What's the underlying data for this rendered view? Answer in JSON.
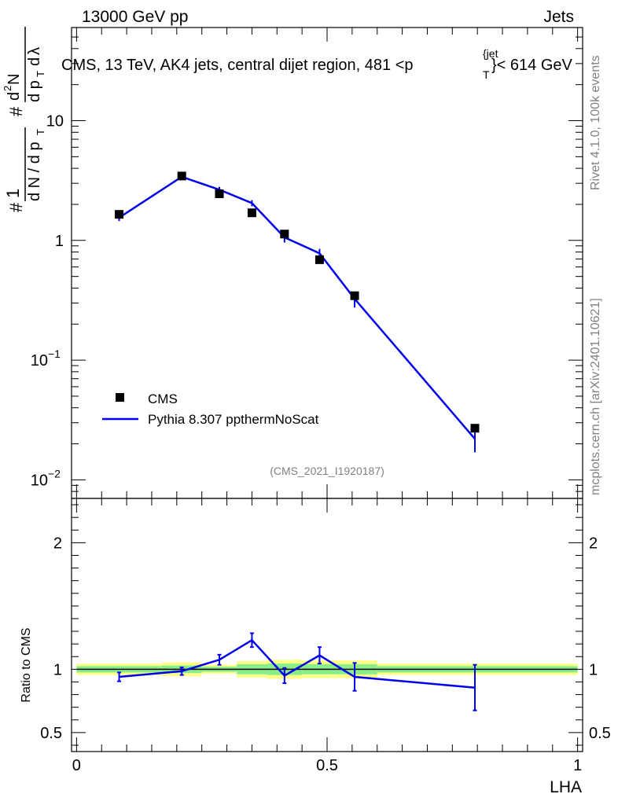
{
  "header": {
    "left": "13000 GeV pp",
    "right": "Jets"
  },
  "side_labels": {
    "rivet": "Rivet 4.1.0,  100k events",
    "mcplots": "mcplots.cern.ch [arXiv:2401.10621]"
  },
  "chart_data": [
    {
      "type": "line",
      "panel": "main",
      "title": "CMS, 13 TeV, AK4 jets, central dijet region, 481 <p_T^{jet}< 614 GeV",
      "title_text": "CMS, 13 TeV, AK4 jets, central dijet region, 481 <p",
      "title_sup": "{jet",
      "title_sub": "T",
      "title_end": "}< 614 GeV",
      "ylabel": "1/dN/dp_T  d2N/dp_T dλ",
      "yscale": "log",
      "ylim": [
        0.007,
        60
      ],
      "xlim": [
        -0.01,
        1.01
      ],
      "yticks": [
        {
          "v": 0.01,
          "base": "10",
          "exp": "−2"
        },
        {
          "v": 0.1,
          "base": "10",
          "exp": "−1"
        },
        {
          "v": 1,
          "label": "1"
        },
        {
          "v": 10,
          "label": "10"
        }
      ],
      "watermark": "(CMS_2021_I1920187)",
      "legend": [
        {
          "name": "CMS",
          "marker": "square"
        },
        {
          "name": "Pythia 8.307 ppthermNoScat",
          "marker": "line",
          "color": "#0000ee"
        }
      ],
      "series": [
        {
          "name": "CMS",
          "x": [
            0.085,
            0.21,
            0.285,
            0.35,
            0.415,
            0.485,
            0.555,
            0.795
          ],
          "y": [
            1.65,
            3.45,
            2.45,
            1.7,
            1.13,
            0.69,
            0.345,
            0.027
          ]
        },
        {
          "name": "Pythia 8.307 ppthermNoScat",
          "x": [
            0.085,
            0.21,
            0.285,
            0.35,
            0.415,
            0.485,
            0.555,
            0.795
          ],
          "y": [
            1.55,
            3.4,
            2.65,
            2.05,
            1.06,
            0.78,
            0.325,
            0.022
          ],
          "err": [
            0.1,
            0.15,
            0.15,
            0.12,
            0.1,
            0.07,
            0.05,
            0.005
          ]
        }
      ]
    },
    {
      "type": "line",
      "panel": "ratio",
      "ylabel": "Ratio to CMS",
      "xlabel": "LHA",
      "ylim": [
        0.35,
        2.35
      ],
      "xlim": [
        -0.01,
        1.01
      ],
      "yticks": [
        0.5,
        1,
        2
      ],
      "ytick_labels": [
        "0.5",
        "1",
        "2"
      ],
      "xticks": [
        0,
        0.5,
        1
      ],
      "xtick_labels": [
        "0",
        "0.5",
        "1"
      ],
      "reference": 1,
      "bands": [
        {
          "x0": 0.0,
          "x1": 0.17,
          "lo_out": 0.955,
          "hi_out": 1.045,
          "lo_in": 0.975,
          "hi_in": 1.025
        },
        {
          "x0": 0.17,
          "x1": 0.25,
          "lo_out": 0.945,
          "hi_out": 1.055,
          "lo_in": 0.97,
          "hi_in": 1.03
        },
        {
          "x0": 0.25,
          "x1": 0.32,
          "lo_out": 0.965,
          "hi_out": 1.035,
          "lo_in": 0.98,
          "hi_in": 1.02
        },
        {
          "x0": 0.32,
          "x1": 0.38,
          "lo_out": 0.935,
          "hi_out": 1.065,
          "lo_in": 0.96,
          "hi_in": 1.04
        },
        {
          "x0": 0.38,
          "x1": 0.45,
          "lo_out": 0.925,
          "hi_out": 1.075,
          "lo_in": 0.955,
          "hi_in": 1.045
        },
        {
          "x0": 0.45,
          "x1": 0.6,
          "lo_out": 0.93,
          "hi_out": 1.07,
          "lo_in": 0.96,
          "hi_in": 1.04
        },
        {
          "x0": 0.6,
          "x1": 1.0,
          "lo_out": 0.955,
          "hi_out": 1.045,
          "lo_in": 0.975,
          "hi_in": 1.025
        }
      ],
      "series": [
        {
          "name": "Pythia 8.307 ppthermNoScat / CMS",
          "x": [
            0.085,
            0.21,
            0.285,
            0.35,
            0.415,
            0.485,
            0.555,
            0.795
          ],
          "y": [
            0.94,
            0.985,
            1.075,
            1.23,
            0.95,
            1.11,
            0.94,
            0.855
          ],
          "err": [
            0.035,
            0.03,
            0.04,
            0.055,
            0.06,
            0.065,
            0.11,
            0.18
          ]
        }
      ]
    }
  ]
}
